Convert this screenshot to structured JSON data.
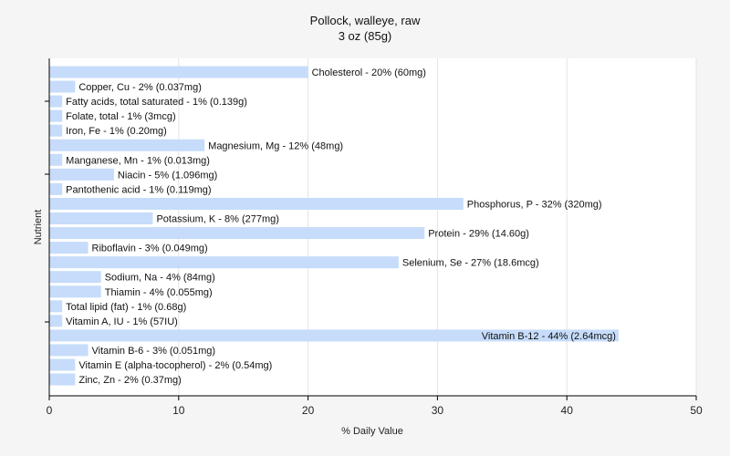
{
  "chart_data": {
    "type": "bar",
    "orientation": "horizontal",
    "title": "Pollock, walleye, raw",
    "subtitle": "3 oz (85g)",
    "xlabel": "% Daily Value",
    "ylabel": "Nutrient",
    "xlim": [
      0,
      50
    ],
    "xticks": [
      0,
      10,
      20,
      30,
      40,
      50
    ],
    "grid": true,
    "bar_color": "#c6dcfa",
    "categories": [
      "Cholesterol",
      "Copper, Cu",
      "Fatty acids, total saturated",
      "Folate, total",
      "Iron, Fe",
      "Magnesium, Mg",
      "Manganese, Mn",
      "Niacin",
      "Pantothenic acid",
      "Phosphorus, P",
      "Potassium, K",
      "Protein",
      "Riboflavin",
      "Selenium, Se",
      "Sodium, Na",
      "Thiamin",
      "Total lipid (fat)",
      "Vitamin A, IU",
      "Vitamin B-12",
      "Vitamin B-6",
      "Vitamin E (alpha-tocopherol)",
      "Zinc, Zn"
    ],
    "values": [
      20,
      2,
      1,
      1,
      1,
      12,
      1,
      5,
      1,
      32,
      8,
      29,
      3,
      27,
      4,
      4,
      1,
      1,
      44,
      3,
      2,
      2
    ],
    "labels": [
      "Cholesterol - 20% (60mg)",
      "Copper, Cu - 2% (0.037mg)",
      "Fatty acids, total saturated - 1% (0.139g)",
      "Folate, total - 1% (3mcg)",
      "Iron, Fe - 1% (0.20mg)",
      "Magnesium, Mg - 12% (48mg)",
      "Manganese, Mn - 1% (0.013mg)",
      "Niacin - 5% (1.096mg)",
      "Pantothenic acid - 1% (0.119mg)",
      "Phosphorus, P - 32% (320mg)",
      "Potassium, K - 8% (277mg)",
      "Protein - 29% (14.60g)",
      "Riboflavin - 3% (0.049mg)",
      "Selenium, Se - 27% (18.6mcg)",
      "Sodium, Na - 4% (84mg)",
      "Thiamin - 4% (0.055mg)",
      "Total lipid (fat) - 1% (0.68g)",
      "Vitamin A, IU - 1% (57IU)",
      "Vitamin B-12 - 44% (2.64mcg)",
      "Vitamin B-6 - 3% (0.051mg)",
      "Vitamin E (alpha-tocopherol) - 2% (0.54mg)",
      "Zinc, Zn - 2% (0.37mg)"
    ]
  }
}
